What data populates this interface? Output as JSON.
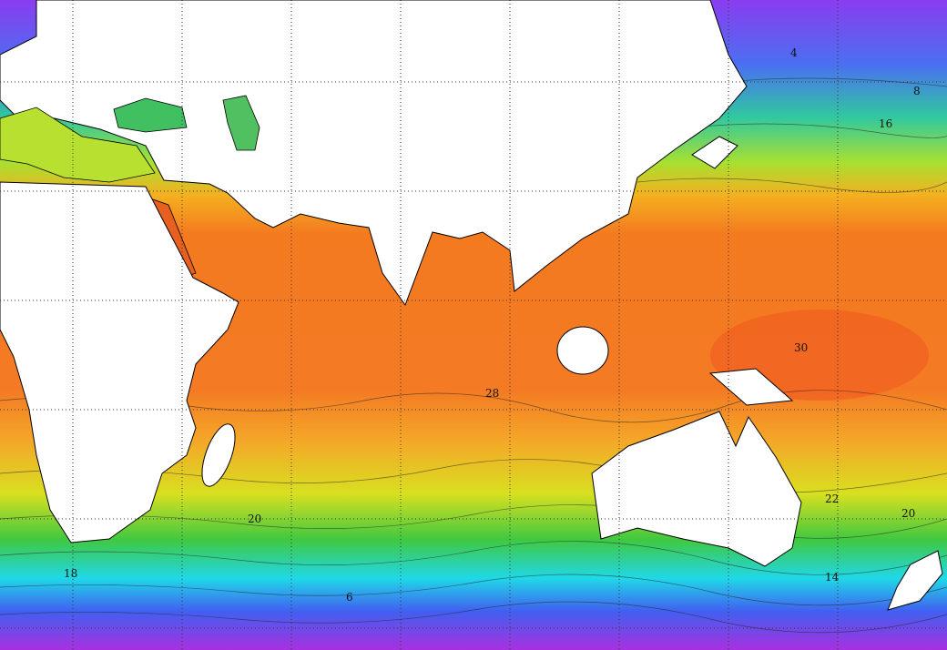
{
  "map": {
    "contour_labels": [
      "28",
      "30",
      "22",
      "20",
      "20",
      "18",
      "16",
      "14",
      "8",
      "6",
      "4"
    ]
  }
}
